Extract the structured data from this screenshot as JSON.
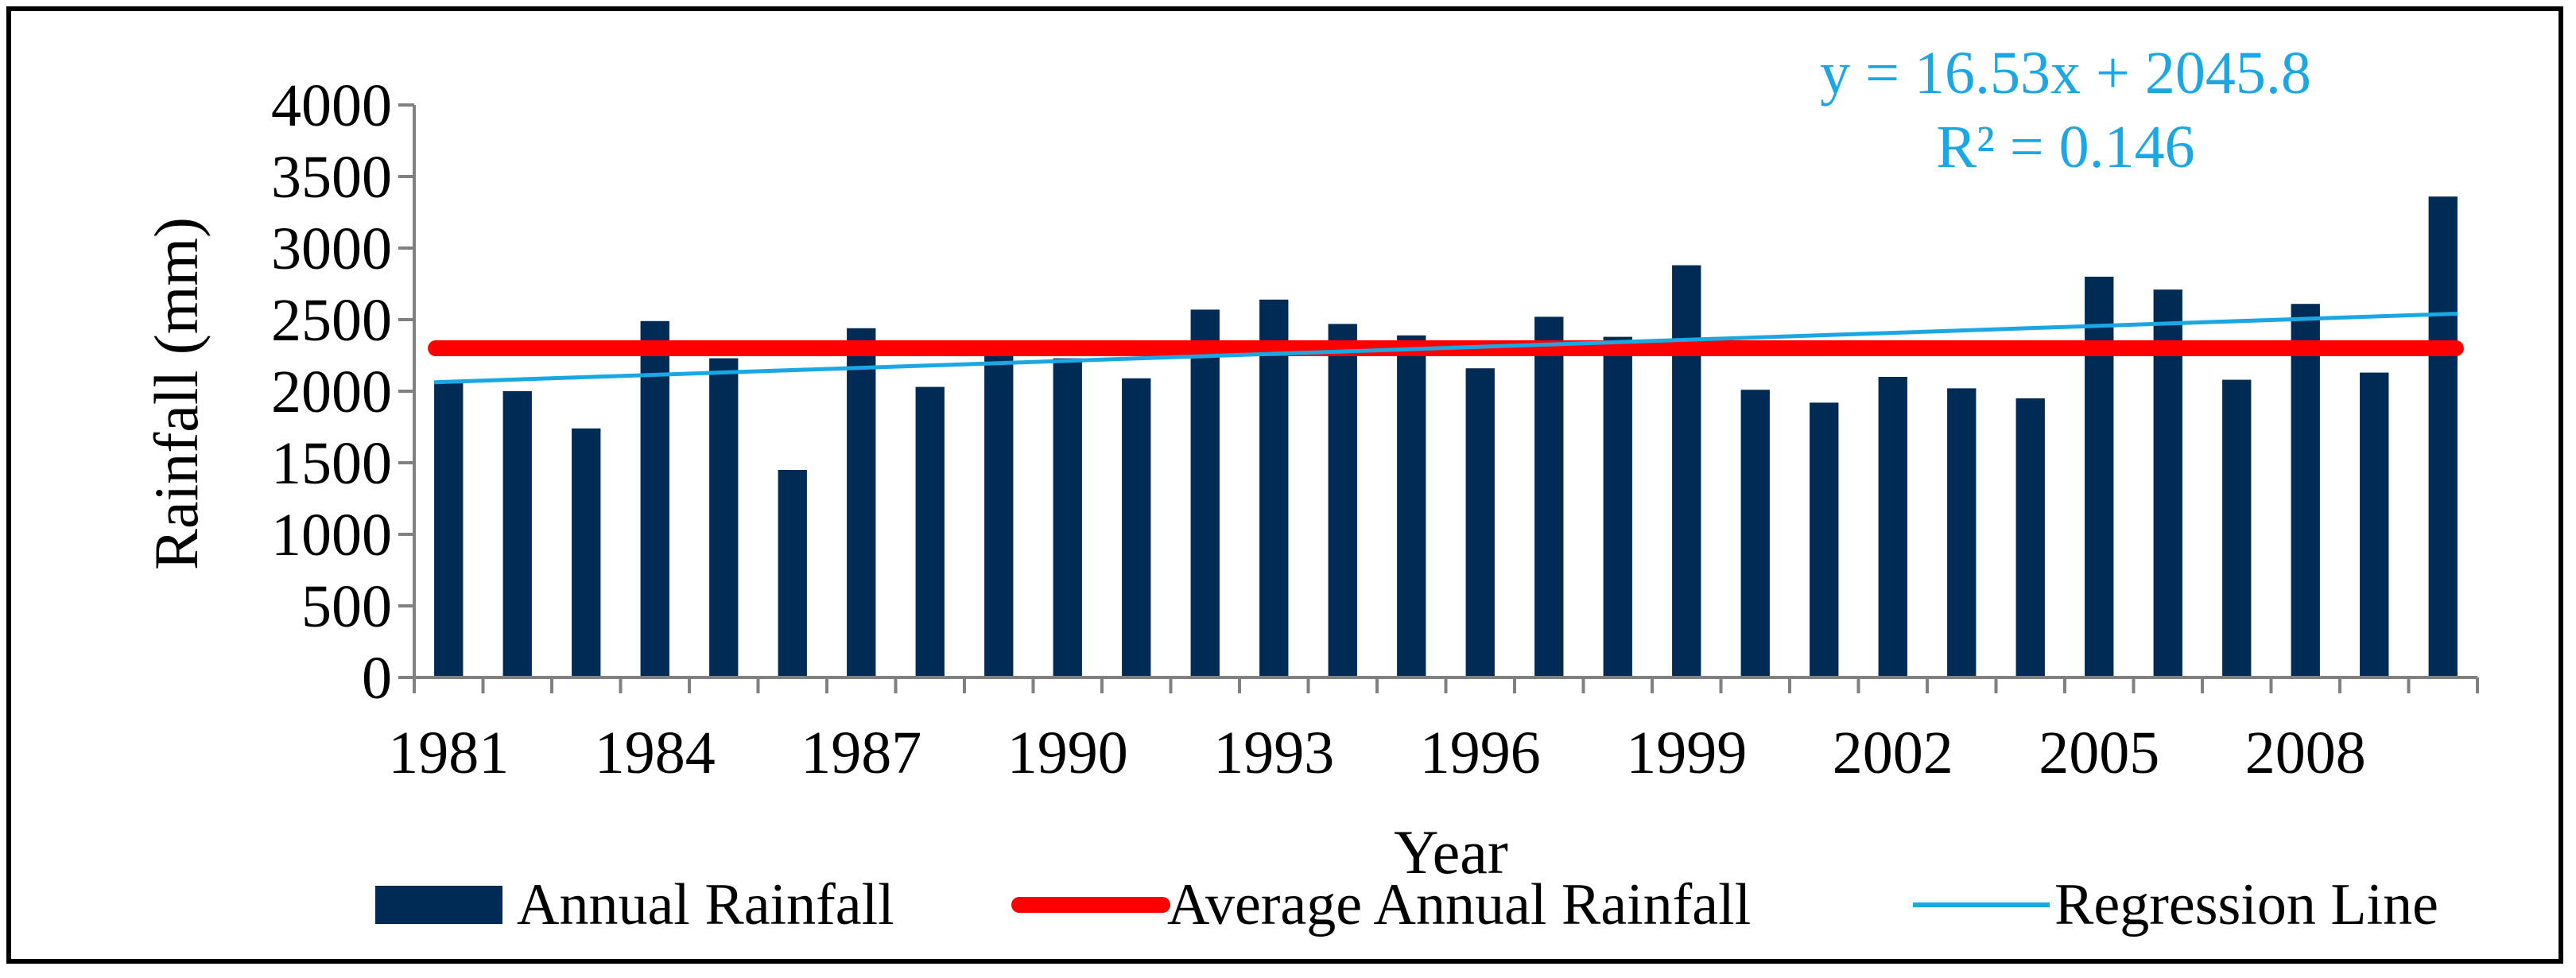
{
  "chart_data": {
    "type": "bar",
    "title": "",
    "xlabel": "Year",
    "ylabel": "Rainfall (mm)",
    "ylim": [
      0,
      4000
    ],
    "yticks": [
      "0",
      "500",
      "1000",
      "1500",
      "2000",
      "2500",
      "3000",
      "3500",
      "4000"
    ],
    "ytick_values": [
      0,
      500,
      1000,
      1500,
      2000,
      2500,
      3000,
      3500,
      4000
    ],
    "xtick_labels": [
      "1981",
      "1984",
      "1987",
      "1990",
      "1993",
      "1996",
      "1999",
      "2002",
      "2005",
      "2008"
    ],
    "categories": [
      1981,
      1982,
      1983,
      1984,
      1985,
      1986,
      1987,
      1988,
      1989,
      1990,
      1991,
      1992,
      1993,
      1994,
      1995,
      1996,
      1997,
      1998,
      1999,
      2000,
      2001,
      2002,
      2003,
      2004,
      2005,
      2006,
      2007,
      2008,
      2009,
      2010
    ],
    "series": [
      {
        "name": "Annual Rainfall",
        "type": "bar",
        "color": "#002B55",
        "values": [
          2070,
          2000,
          1740,
          2490,
          2230,
          1450,
          2440,
          2030,
          2270,
          2230,
          2090,
          2570,
          2640,
          2470,
          2390,
          2160,
          2520,
          2380,
          2880,
          2010,
          1920,
          2100,
          2020,
          1950,
          2800,
          2710,
          2080,
          2610,
          2130,
          3360
        ]
      },
      {
        "name": "Average Annual Rainfall",
        "type": "line",
        "color": "#FF0000",
        "value": 2300
      },
      {
        "name": "Regression Line",
        "type": "line",
        "color": "#1AA7E4",
        "slope": 16.53,
        "intercept": 2045.8
      }
    ],
    "annotations": {
      "equation": "y = 16.53x + 2045.8",
      "r_squared": "R² = 0.146"
    },
    "legend": {
      "position": "bottom",
      "items": [
        "Annual Rainfall",
        "Average Annual Rainfall",
        "Regression Line"
      ]
    },
    "grid": false
  }
}
